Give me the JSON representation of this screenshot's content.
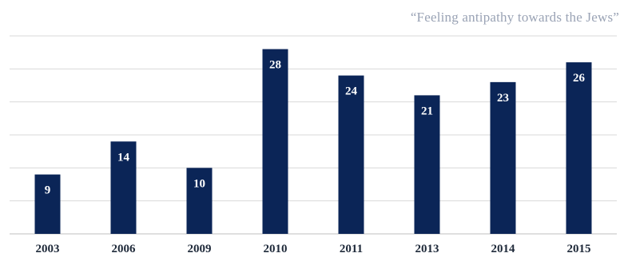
{
  "chart_data": {
    "type": "bar",
    "title": "“Feeling antipathy towards the Jews”",
    "xlabel": "",
    "ylabel": "",
    "categories": [
      "2003",
      "2006",
      "2009",
      "2010",
      "2011",
      "2013",
      "2014",
      "2015"
    ],
    "values": [
      9,
      14,
      10,
      28,
      24,
      21,
      23,
      26
    ],
    "ylim": [
      0,
      30
    ],
    "grid": true,
    "legend": "none",
    "colors": {
      "bar": "#0b2557",
      "grid": "#d9d9d9",
      "axis": "#bfbfbf",
      "title": "#9aa3b5"
    }
  }
}
